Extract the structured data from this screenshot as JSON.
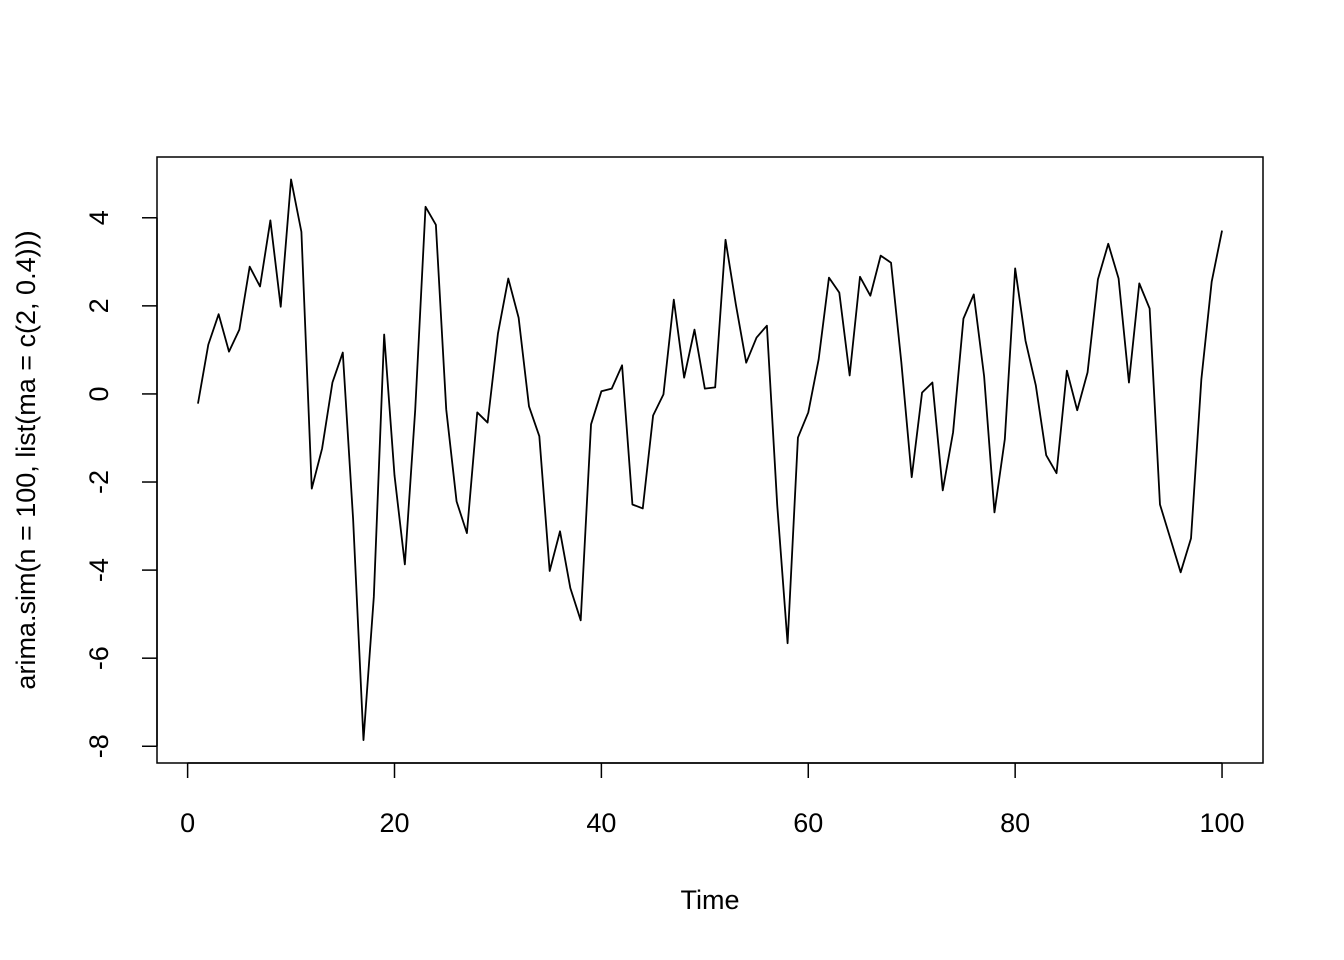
{
  "chart_data": {
    "type": "line",
    "x_label": "Time",
    "y_label": "arima.sim(n = 100, list(ma = c(2, 0.4)))",
    "x": [
      1,
      2,
      3,
      4,
      5,
      6,
      7,
      8,
      9,
      10,
      11,
      12,
      13,
      14,
      15,
      16,
      17,
      18,
      19,
      20,
      21,
      22,
      23,
      24,
      25,
      26,
      27,
      28,
      29,
      30,
      31,
      32,
      33,
      34,
      35,
      36,
      37,
      38,
      39,
      40,
      41,
      42,
      43,
      44,
      45,
      46,
      47,
      48,
      49,
      50,
      51,
      52,
      53,
      54,
      55,
      56,
      57,
      58,
      59,
      60,
      61,
      62,
      63,
      64,
      65,
      66,
      67,
      68,
      69,
      70,
      71,
      72,
      73,
      74,
      75,
      76,
      77,
      78,
      79,
      80,
      81,
      82,
      83,
      84,
      85,
      86,
      87,
      88,
      89,
      90,
      91,
      92,
      93,
      94,
      95,
      96,
      97,
      98,
      99,
      100
    ],
    "series": [
      {
        "color": "#000000",
        "values": [
          -0.22,
          1.12,
          1.81,
          0.96,
          1.46,
          2.89,
          2.44,
          3.94,
          1.98,
          4.87,
          3.68,
          -2.15,
          -1.24,
          0.26,
          0.94,
          -2.85,
          -7.86,
          -4.61,
          1.35,
          -1.85,
          -3.87,
          -0.37,
          4.25,
          3.84,
          -0.35,
          -2.44,
          -3.16,
          -0.42,
          -0.65,
          1.37,
          2.62,
          1.73,
          -0.28,
          -0.96,
          -4.02,
          -3.12,
          -4.41,
          -5.14,
          -0.69,
          0.06,
          0.12,
          0.65,
          -2.51,
          -2.6,
          -0.49,
          -0.01,
          2.14,
          0.37,
          1.46,
          0.12,
          0.15,
          3.5,
          2.03,
          0.71,
          1.28,
          1.55,
          -2.53,
          -5.66,
          -0.99,
          -0.42,
          0.78,
          2.64,
          2.3,
          0.42,
          2.66,
          2.23,
          3.14,
          2.98,
          0.71,
          -1.89,
          0.03,
          0.26,
          -2.19,
          -0.87,
          1.71,
          2.26,
          0.4,
          -2.69,
          -1.03,
          2.85,
          1.21,
          0.19,
          -1.39,
          -1.8,
          0.53,
          -0.37,
          0.49,
          2.6,
          3.41,
          2.62,
          0.26,
          2.51,
          1.94,
          -2.51,
          -3.28,
          -4.05,
          -3.28,
          0.33,
          2.55,
          3.71
        ]
      }
    ],
    "xlim": [
      -2.96,
      103.96
    ],
    "xticks": [
      0,
      20,
      40,
      60,
      80,
      100
    ],
    "ylim": [
      -8.38,
      5.38
    ],
    "yticks": [
      -8,
      -6,
      -4,
      -2,
      0,
      2,
      4
    ]
  }
}
